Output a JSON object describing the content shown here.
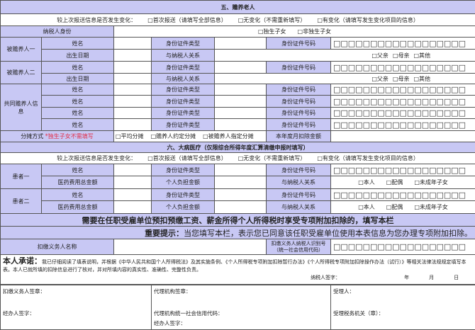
{
  "id_boxes": "□□□□□□□□□□□□□□□□□□",
  "change_q": {
    "label": "较上次报送信息是否发生变化：",
    "opt1": "□首次报送（请填写全部信息）",
    "opt2": "□无变化（不需重新填写）",
    "opt3": "□有变化（请填写发生变化项目的信息）"
  },
  "labels": {
    "name": "姓名",
    "id_type": "身份证件类型",
    "id_no": "身份证件号码",
    "birth": "出生日期",
    "relation": "与纳税人关系",
    "med_total": "医药费用总金额",
    "self_pay": "个人负担金额"
  },
  "section5": {
    "title": "五、赡养老人",
    "taxpayer_identity": "纳税人身份",
    "only_child": "□独生子女",
    "not_only_child": "□非独生子女",
    "person1": "被赡养人一",
    "person2": "被赡养人二",
    "rel_father": "□父亲",
    "rel_mother": "□母亲",
    "rel_other": "□其他",
    "co_supporters": "共同赡养人信息",
    "alloc_label": "分摊方式",
    "alloc_note": "*独生子女不需填写",
    "alloc_opt1": "□平均分摊",
    "alloc_opt2": "□赡养人约定分摊",
    "alloc_opt3": "□被赡养人指定分摊",
    "monthly_deduction": "本年度月扣除金额"
  },
  "section6": {
    "title": "六、大病医疗（仅限综合所得年度汇算清缴申报时填写）",
    "patient1": "患者一",
    "patient2": "患者二",
    "rel_self": "□本人",
    "rel_spouse": "□配偶",
    "rel_minor": "□未成年子女"
  },
  "employer": {
    "banner": "需要在任职受雇单位预扣预缴工资、薪金所得个人所得税时享受专项附加扣除的，填写本栏",
    "important_label": "重要提示：",
    "important_text": "当您填写本栏，表示您已同意该任职受雇单位使用本表信息为您办理专项附加扣除。",
    "withholder_name": "扣缴义务人名称",
    "withholder_id_1": "扣缴义务人纳税人识别号",
    "withholder_id_2": "（统一社会信用代码）"
  },
  "pledge": {
    "title": "本人承诺：",
    "text": "我已仔细阅读了填表说明，并根据《中华人民共和国个人所得税法》及其实施条例、《个人所得税专项附加扣除暂行办法》《个人所得税专项附加扣除操作办法（试行）》等相关法律法规规定填写本表。本人已就所填的扣除信息进行了核对，并对所填内容的真实性、准确性、完整性负责。",
    "signature": "纳税人签字：",
    "year": "年",
    "month": "月",
    "day": "日"
  },
  "signatures": {
    "withholder_seal": "扣缴义务人签章：",
    "handler_sign": "经办人签字：",
    "agency_seal": "代理机构签章：",
    "agency_code": "代理机构统一社会信用代码：",
    "agency_handler": "经办人签字：",
    "receiver": "受理人：",
    "tax_office": "受理税务机关（章）："
  }
}
